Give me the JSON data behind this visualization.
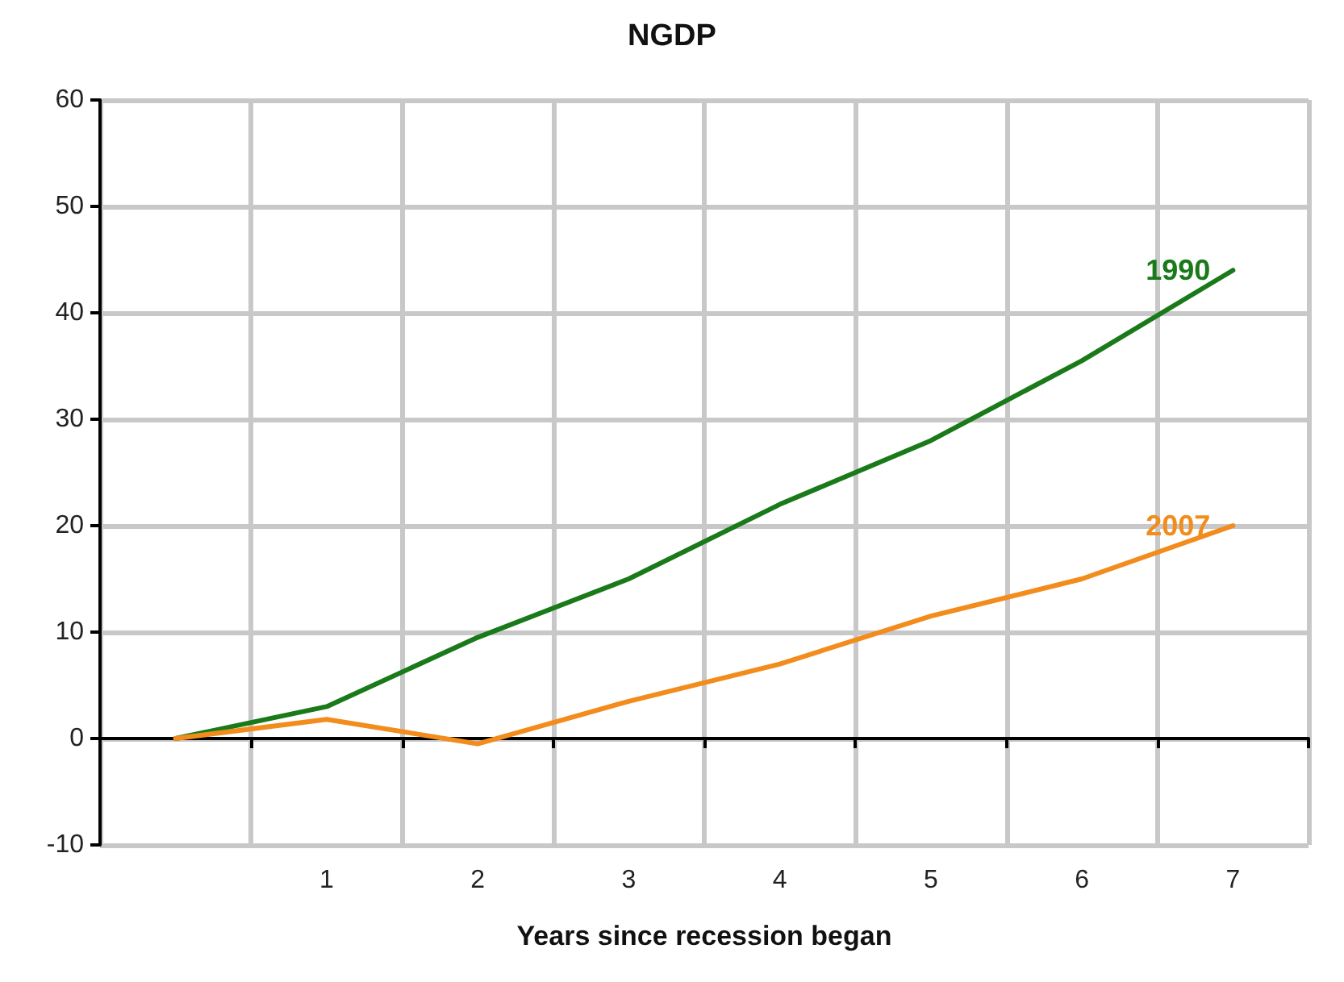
{
  "chart_data": {
    "type": "line",
    "title": "NGDP",
    "xlabel": "Years since recession began",
    "categories": [
      null,
      "1",
      "2",
      "3",
      "4",
      "5",
      "6",
      "7"
    ],
    "series": [
      {
        "name": "1990",
        "color": "#1a7a1a",
        "values": [
          0,
          3,
          9.5,
          15,
          22,
          28,
          35.5,
          44
        ]
      },
      {
        "name": "2007",
        "color": "#f28c1c",
        "values": [
          0,
          1.8,
          -0.5,
          3.5,
          7,
          11.5,
          15,
          20
        ]
      }
    ],
    "ylim": [
      -10,
      60
    ],
    "yticks": [
      -10,
      0,
      10,
      20,
      30,
      40,
      50,
      60
    ],
    "grid": true,
    "marker": "none",
    "line_style": "solid",
    "legend": false
  }
}
